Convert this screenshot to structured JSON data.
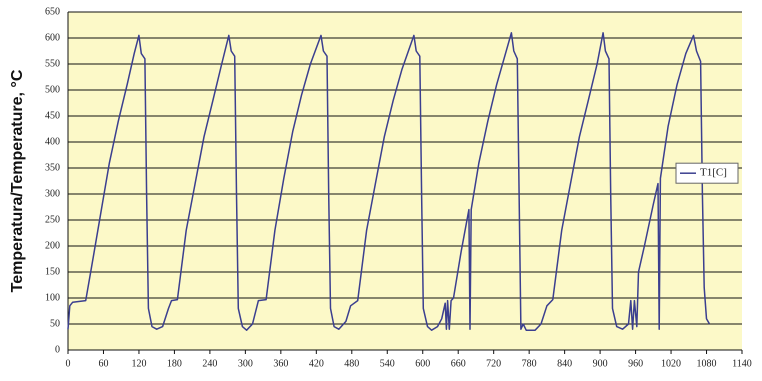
{
  "chart_data": {
    "type": "line",
    "ylabel": "Temperatura/Temperature, °C",
    "x": [
      0,
      3,
      8,
      30,
      40,
      55,
      70,
      85,
      100,
      112,
      120,
      124,
      130,
      133,
      136,
      142,
      150,
      160,
      170,
      175,
      185,
      200,
      215,
      230,
      245,
      260,
      272,
      276,
      282,
      285,
      288,
      295,
      302,
      312,
      322,
      335,
      350,
      365,
      380,
      395,
      410,
      428,
      432,
      438,
      441,
      444,
      450,
      458,
      470,
      478,
      490,
      505,
      520,
      535,
      550,
      565,
      585,
      589,
      595,
      598,
      601,
      608,
      615,
      625,
      632,
      638,
      640,
      642,
      645,
      648,
      652,
      665,
      678,
      680,
      682,
      695,
      710,
      725,
      740,
      750,
      754,
      760,
      763,
      766,
      770,
      775,
      790,
      800,
      810,
      820,
      835,
      850,
      865,
      880,
      895,
      905,
      909,
      915,
      918,
      921,
      928,
      938,
      948,
      952,
      955,
      958,
      962,
      965,
      975,
      990,
      998,
      1000,
      1002,
      1015,
      1030,
      1045,
      1058,
      1063,
      1070,
      1073,
      1076,
      1080,
      1085
    ],
    "series": [
      {
        "name": "T1[C]",
        "color": "#3b3f8f",
        "values": [
          40,
          85,
          92,
          95,
          160,
          260,
          360,
          440,
          510,
          570,
          605,
          570,
          560,
          300,
          80,
          45,
          40,
          45,
          80,
          95,
          97,
          230,
          320,
          410,
          480,
          550,
          605,
          575,
          565,
          300,
          80,
          45,
          38,
          50,
          95,
          97,
          230,
          330,
          420,
          490,
          550,
          605,
          575,
          565,
          300,
          80,
          45,
          40,
          55,
          85,
          95,
          230,
          320,
          410,
          480,
          540,
          605,
          575,
          565,
          300,
          80,
          45,
          38,
          45,
          60,
          90,
          40,
          95,
          40,
          95,
          100,
          190,
          270,
          40,
          270,
          360,
          440,
          510,
          570,
          610,
          575,
          560,
          300,
          40,
          50,
          38,
          38,
          50,
          85,
          97,
          230,
          320,
          410,
          480,
          550,
          610,
          575,
          560,
          300,
          80,
          45,
          40,
          50,
          95,
          40,
          95,
          45,
          150,
          200,
          280,
          320,
          40,
          330,
          430,
          510,
          570,
          605,
          575,
          555,
          300,
          120,
          60,
          50
        ]
      }
    ],
    "xlim": [
      0,
      1140
    ],
    "xticks": [
      0,
      60,
      120,
      180,
      240,
      300,
      360,
      420,
      480,
      540,
      600,
      660,
      720,
      780,
      840,
      900,
      960,
      1020,
      1080,
      1140
    ],
    "ylim": [
      0,
      650
    ],
    "yticks": [
      0,
      50,
      100,
      150,
      200,
      250,
      300,
      350,
      400,
      450,
      500,
      550,
      600,
      650
    ],
    "grid": true,
    "legend": "right"
  }
}
